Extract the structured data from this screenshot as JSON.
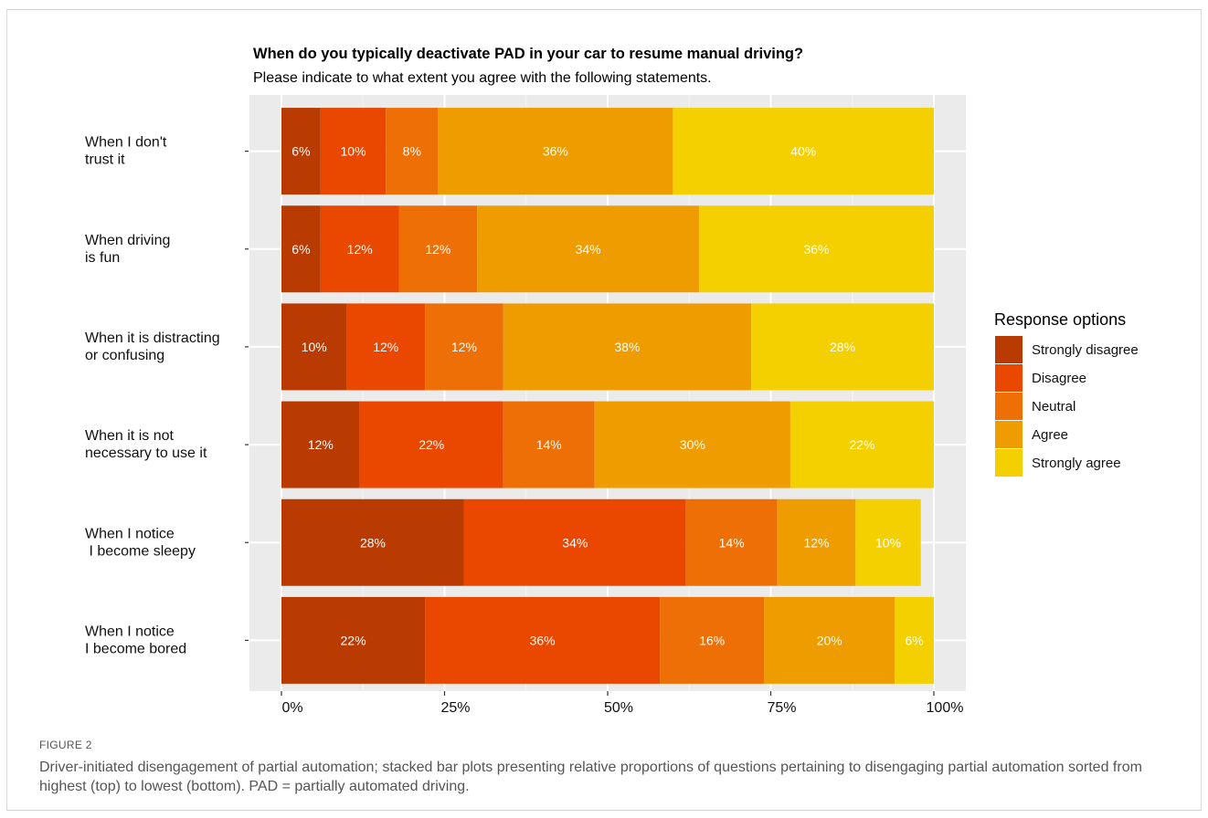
{
  "figure": {
    "label": "FIGURE 2",
    "caption": "Driver-initiated disengagement of partial automation; stacked bar plots presenting relative proportions of questions pertaining to disengaging partial automation sorted from highest (top) to lowest (bottom). PAD = partially automated driving."
  },
  "chart_data": {
    "type": "bar",
    "orientation": "horizontal",
    "stacked": true,
    "title": "When do you typically deactivate PAD in your car to resume manual driving?",
    "subtitle": "Please indicate to what extent you agree with the following statements.",
    "categories": [
      [
        "When I don't",
        "trust it"
      ],
      [
        "When driving",
        "is fun"
      ],
      [
        "When it is distracting",
        "or confusing"
      ],
      [
        "When it is not",
        "necessary to use it"
      ],
      [
        "When I notice",
        " I become sleepy"
      ],
      [
        "When I notice",
        "I become bored"
      ]
    ],
    "series": [
      {
        "name": "Strongly disagree",
        "color": "#b93b02",
        "values": [
          6,
          6,
          10,
          12,
          28,
          22
        ],
        "labels": [
          "6%",
          "6%",
          "10%",
          "12%",
          "28%",
          "22%"
        ]
      },
      {
        "name": "Disagree",
        "color": "#ea4700",
        "values": [
          10,
          12,
          12,
          22,
          34,
          36
        ],
        "labels": [
          "10%",
          "12%",
          "12%",
          "22%",
          "34%",
          "36%"
        ]
      },
      {
        "name": "Neutral",
        "color": "#ee6f05",
        "values": [
          8,
          12,
          12,
          14,
          14,
          16
        ],
        "labels": [
          "8%",
          "12%",
          "12%",
          "14%",
          "14%",
          "16%"
        ]
      },
      {
        "name": "Agree",
        "color": "#ef9c00",
        "values": [
          36,
          34,
          38,
          30,
          12,
          20
        ],
        "labels": [
          "36%",
          "34%",
          "38%",
          "30%",
          "12%",
          "20%"
        ]
      },
      {
        "name": "Strongly agree",
        "color": "#f4d000",
        "values": [
          40,
          36,
          28,
          22,
          10,
          6
        ],
        "labels": [
          "40%",
          "36%",
          "28%",
          "22%",
          "10%",
          "6%"
        ]
      }
    ],
    "x_ticks": [
      "0%",
      "25%",
      "50%",
      "75%",
      "100%"
    ],
    "xlim": [
      0,
      100
    ],
    "legend": {
      "title": "Response options",
      "position": "right"
    },
    "grid": true
  }
}
